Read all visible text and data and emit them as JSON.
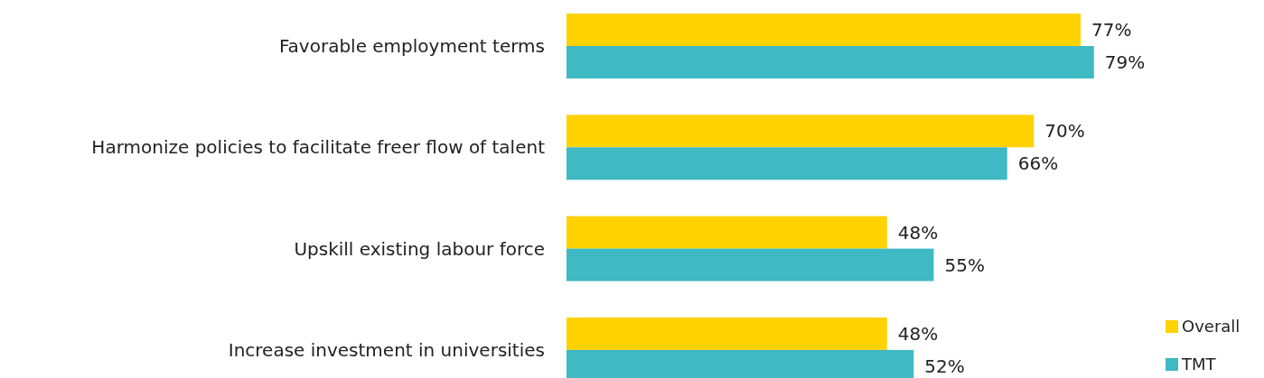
{
  "chart_data": {
    "type": "bar",
    "orientation": "horizontal",
    "categories": [
      "Favorable employment terms",
      "Harmonize policies to facilitate freer flow of talent",
      "Upskill existing labour force",
      "Increase investment in universities"
    ],
    "series": [
      {
        "name": "Overall",
        "color": "#ffd200",
        "values": [
          77,
          70,
          48,
          48
        ],
        "value_labels": [
          "77%",
          "70%",
          "48%",
          "48%"
        ]
      },
      {
        "name": "TMT",
        "color": "#3fb9c3",
        "values": [
          79,
          66,
          55,
          52
        ],
        "value_labels": [
          "79%",
          "66%",
          "55%",
          "52%"
        ]
      }
    ],
    "legend": "bottom right",
    "tick_labels": "y"
  }
}
